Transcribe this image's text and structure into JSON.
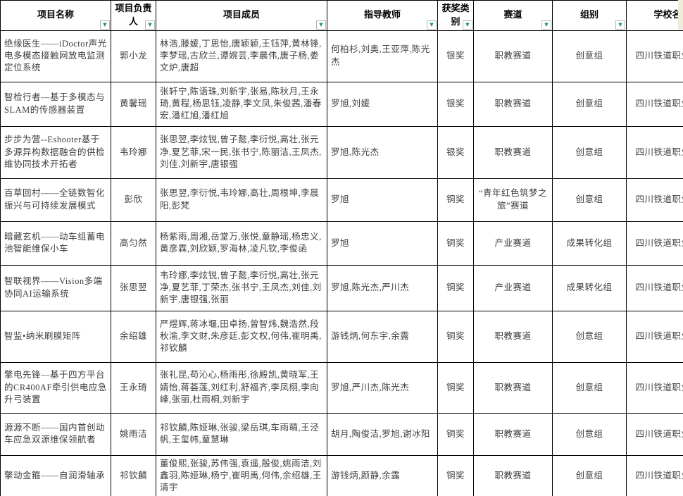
{
  "colors": {
    "accent_green": "#1e9668",
    "filter_badge_green": "#21a366",
    "grid_border": "#000000",
    "body_text": "#3d3d3d",
    "corner_fill": "#f0ebda"
  },
  "icons": {
    "filter_dropdown": "chevron-down-triangle",
    "filter_active": "funnel"
  },
  "table": {
    "columns": [
      {
        "key": "name",
        "label": "项目名称"
      },
      {
        "key": "leader",
        "label": "项目负责人"
      },
      {
        "key": "members",
        "label": "项目成员"
      },
      {
        "key": "teachers",
        "label": "指导教师"
      },
      {
        "key": "award",
        "label": "获奖类别"
      },
      {
        "key": "track",
        "label": "赛道"
      },
      {
        "key": "group",
        "label": "组别"
      },
      {
        "key": "school",
        "label": "学校名称"
      }
    ],
    "rows": [
      {
        "name": "绝缘医生——iDoctor声光电多模态接触网放电监测定位系统",
        "leader": "郭小龙",
        "members": "林浩,滕媛,丁思怡,唐颖颖,王钰萍,黄林锋,李梦瑶,古欣兰,谭婉芸,李晨伟,唐子杨,娄文炉,唐超",
        "teachers": "何柏杉,刘奥,王亚萍,陈光杰",
        "award": "银奖",
        "track": "职教赛道",
        "group": "创意组",
        "school": "四川铁道职业学院"
      },
      {
        "name": "智检行者—基于多模态与SLAM的传感器装置",
        "leader": "黄馨瑶",
        "members": "张轩宁,陈语珠,刘新宇,张易,陈秋月,王永琦,黄程,杨思钰,凌静,李文凤,朱俊茜,潘春宏,潘红旭,潘红旭",
        "teachers": "罗旭,刘媛",
        "award": "银奖",
        "track": "职教赛道",
        "group": "创意组",
        "school": "四川铁道职业学院"
      },
      {
        "name": "步步为营--Eshooter基于多源异构数据融合的供检维协同技术开拓者",
        "leader": "韦玲娜",
        "members": "张思翌,李炫锐,曾子懿,李衍悦,高壮,张元净,夏艺菲,宋一民,张书宁,陈丽洁,王凤杰,刘佳,刘新宇,唐银强",
        "teachers": "罗旭,陈光杰",
        "award": "银奖",
        "track": "职教赛道",
        "group": "创意组",
        "school": "四川铁道职业学院"
      },
      {
        "name": "百草回村——全链数智化振兴与可持续发展模式",
        "leader": "彭欣",
        "members": "张思翌,李衍悦,韦玲娜,高壮,周根坤,李晨阳,彭梵",
        "teachers": "罗旭",
        "award": "铜奖",
        "track": "“青年红色筑梦之旅”赛道",
        "group": "创意组",
        "school": "四川铁道职业学院"
      },
      {
        "name": "暗藏玄机——动车组蓄电池智能维保小车",
        "leader": "高匀然",
        "members": "杨紫雨,周湘,岳堂万,张悦,童静瑶,杨忠义,黄彦霖,刘欣颖,罗海林,凌凡钦,李俊函",
        "teachers": "罗旭",
        "award": "铜奖",
        "track": "产业赛道",
        "group": "成果转化组",
        "school": "四川铁道职业学院"
      },
      {
        "name": "智联视界——Vision多端协同AI运输系统",
        "leader": "张思翌",
        "members": "韦玲娜,李炫锐,曾子懿,李衍悦,高壮,张元净,夏艺菲,丁荣杰,张书宁,王凤杰,刘佳,刘新宇,唐银强,张丽",
        "teachers": "罗旭,陈光杰,严川杰",
        "award": "铜奖",
        "track": "产业赛道",
        "group": "成果转化组",
        "school": "四川铁道职业学院"
      },
      {
        "name": "智监•纳米刷膜矩阵",
        "leader": "余绍雄",
        "members": "严煜辉,蒋冰堰,田卓扬,曾智炜,魏浩然,段秋渝,李文财,朱彦廷,彭文权,何伟,崔明禹,祁钦麟",
        "teachers": "游钱炳,何东宇,余露",
        "award": "铜奖",
        "track": "职教赛道",
        "group": "创意组",
        "school": "四川铁道职业学院"
      },
      {
        "name": "擎电先锋—基于四方平台的CR400AF牵引供电应急升弓装置",
        "leader": "王永琦",
        "members": "张礼昆,苟沁心,杨雨彤,徐殿凯,黄晓军,王婧怡,蒋荟莲,刘红利,舒福齐,李凤栩,李向峰,张丽,杜雨桐,刘新宇",
        "teachers": "罗旭,严川杰,陈光杰",
        "award": "铜奖",
        "track": "职教赛道",
        "group": "创意组",
        "school": "四川铁道职业学院"
      },
      {
        "name": "源源不断——国内首创动车应急双源维保领航者",
        "leader": "姚雨洁",
        "members": "祁钦麟,陈娅琳,张骏,梁岳琪,车雨萌,王泾帆,王玺帏,童慧琳",
        "teachers": "胡月,陶俊洁,罗旭,谢冰阳",
        "award": "铜奖",
        "track": "职教赛道",
        "group": "创意组",
        "school": "四川铁道职业学院"
      },
      {
        "name": "擎动金箍——自润滑轴承",
        "leader": "祁钦麟",
        "members": "董俊熙,张骏,苏伟强,袁遥,殷俊,姚雨洁,刘鑫羽,陈娅琳,杨宁,崔明禹,何伟,余绍雄,王清宇",
        "teachers": "游钱炳,颜静,余露",
        "award": "铜奖",
        "track": "职教赛道",
        "group": "创意组",
        "school": "四川铁道职业学院"
      }
    ]
  }
}
